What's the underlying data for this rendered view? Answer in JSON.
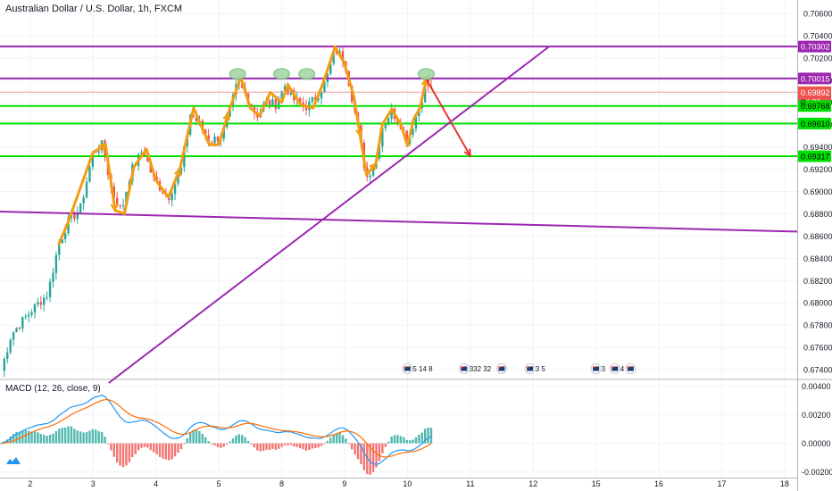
{
  "header": {
    "title": "Australian Dollar / U.S. Dollar, 1h, FXCM"
  },
  "indicator": {
    "label": "MACD (12, 26, close, 9)"
  },
  "chart_data": {
    "type": "candlestick",
    "xlabel": "",
    "ylabel": "",
    "x_tick_labels": [
      "2",
      "3",
      "4",
      "5",
      "8",
      "9",
      "10",
      "11",
      "12",
      "15",
      "16",
      "17",
      "18"
    ],
    "x_tick_positions": [
      2,
      3,
      4,
      5,
      6,
      7,
      8,
      9,
      10,
      11,
      12,
      13,
      14
    ],
    "xlim": [
      1.52,
      14.2
    ],
    "price_axis": {
      "ylim": [
        0.6732,
        0.7072
      ],
      "ticks": [
        "0.70600",
        "0.70400",
        "0.70200",
        "0.70000",
        "0.69800",
        "0.69600",
        "0.69400",
        "0.69200",
        "0.69000",
        "0.68800",
        "0.68600",
        "0.68400",
        "0.68200",
        "0.68000",
        "0.67800",
        "0.67600",
        "0.67400"
      ]
    },
    "macd_axis": {
      "ylim": [
        -0.0024,
        0.0044
      ],
      "ticks": [
        "0.00400",
        "0.00200",
        "0.00000",
        "-0.00200"
      ]
    },
    "price_badges": [
      {
        "label": "0.70302",
        "value": 0.70302,
        "color": "#9c27b0"
      },
      {
        "label": "0.70015",
        "value": 0.70015,
        "color": "#9c27b0"
      },
      {
        "label": "0.69892",
        "value": 0.69892,
        "color": "#ef5350"
      },
      {
        "label": "04:30",
        "value": 0.69805,
        "color": "#ef5350"
      },
      {
        "label": "0.69768",
        "value": 0.69768,
        "color": "#00e000"
      },
      {
        "label": "0.69610",
        "value": 0.6961,
        "color": "#00e000"
      },
      {
        "label": "0.69317",
        "value": 0.69317,
        "color": "#00e000"
      }
    ],
    "current_price_label": "0.",
    "horizontal_lines": [
      {
        "value": 0.70302,
        "color": "#9c27b0"
      },
      {
        "value": 0.70015,
        "color": "#9c27b0"
      },
      {
        "value": 0.69768,
        "color": "#00e000"
      },
      {
        "value": 0.6961,
        "color": "#00e000"
      },
      {
        "value": 0.69317,
        "color": "#00e000"
      }
    ],
    "trend_lines": [
      {
        "from": [
          1.52,
          0.6882
        ],
        "to": [
          14.2,
          0.6864
        ],
        "color": "#9c27b0"
      },
      {
        "from": [
          3.25,
          0.6728
        ],
        "to": [
          10.25,
          0.703
        ],
        "color": "#9c27b0"
      }
    ],
    "forecast_arrow": {
      "from": [
        8.3,
        0.7001
      ],
      "to": [
        9.0,
        0.6932
      ],
      "color": "#e53935"
    },
    "wave_path": [
      [
        2.45,
        0.6852
      ],
      [
        2.6,
        0.6872
      ],
      [
        3.0,
        0.6935
      ],
      [
        3.2,
        0.6942
      ],
      [
        3.35,
        0.6883
      ],
      [
        3.5,
        0.688
      ],
      [
        3.65,
        0.6922
      ],
      [
        3.85,
        0.6938
      ],
      [
        4.0,
        0.691
      ],
      [
        4.2,
        0.6895
      ],
      [
        4.38,
        0.692
      ],
      [
        4.6,
        0.6975
      ],
      [
        4.85,
        0.6942
      ],
      [
        5.0,
        0.6942
      ],
      [
        5.15,
        0.697
      ],
      [
        5.35,
        0.7003
      ],
      [
        5.5,
        0.6975
      ],
      [
        5.65,
        0.6968
      ],
      [
        5.82,
        0.6989
      ],
      [
        6.0,
        0.698
      ],
      [
        6.1,
        0.6996
      ],
      [
        6.3,
        0.6978
      ],
      [
        6.5,
        0.6975
      ],
      [
        6.65,
        0.6996
      ],
      [
        6.85,
        0.703
      ],
      [
        7.0,
        0.7015
      ],
      [
        7.15,
        0.6985
      ],
      [
        7.25,
        0.695
      ],
      [
        7.35,
        0.6915
      ],
      [
        7.5,
        0.6925
      ],
      [
        7.6,
        0.696
      ],
      [
        7.75,
        0.6974
      ],
      [
        7.9,
        0.696
      ],
      [
        8.0,
        0.6941
      ],
      [
        8.1,
        0.6965
      ],
      [
        8.2,
        0.6975
      ],
      [
        8.3,
        0.7001
      ]
    ],
    "wave_color": "#f39c12",
    "top_markers_x": [
      5.3,
      6.0,
      6.4,
      8.3
    ],
    "event_icons": [
      {
        "x": 8.0,
        "label": "5 14 8"
      },
      {
        "x": 8.9,
        "label": "332 32"
      },
      {
        "x": 9.5,
        "label": ""
      },
      {
        "x": 9.95,
        "label": "3 5"
      },
      {
        "x": 11.0,
        "label": "3"
      },
      {
        "x": 11.3,
        "label": "4"
      },
      {
        "x": 11.55,
        "label": ""
      }
    ],
    "candle_colors": {
      "up": "#26a69a",
      "down": "#ef5350",
      "wick": "#5d606b"
    },
    "macd_colors": {
      "macd": "#2196f3",
      "signal": "#ff6d00",
      "hist_pos": "#26a69a",
      "hist_neg": "#ef5350"
    },
    "anchors": [
      [
        1.52,
        0.6735
      ],
      [
        1.7,
        0.6772
      ],
      [
        1.85,
        0.6782
      ],
      [
        2.1,
        0.6798
      ],
      [
        2.28,
        0.6808
      ],
      [
        2.45,
        0.6852
      ],
      [
        2.6,
        0.6872
      ],
      [
        2.8,
        0.6885
      ],
      [
        3.0,
        0.6935
      ],
      [
        3.15,
        0.6942
      ],
      [
        3.3,
        0.69
      ],
      [
        3.45,
        0.6882
      ],
      [
        3.6,
        0.6918
      ],
      [
        3.8,
        0.6938
      ],
      [
        3.95,
        0.6912
      ],
      [
        4.2,
        0.6895
      ],
      [
        4.4,
        0.692
      ],
      [
        4.55,
        0.697
      ],
      [
        4.7,
        0.696
      ],
      [
        4.85,
        0.6945
      ],
      [
        5.05,
        0.695
      ],
      [
        5.15,
        0.6968
      ],
      [
        5.3,
        0.6998
      ],
      [
        5.45,
        0.6985
      ],
      [
        5.6,
        0.6968
      ],
      [
        5.75,
        0.698
      ],
      [
        5.9,
        0.6978
      ],
      [
        6.05,
        0.6995
      ],
      [
        6.2,
        0.6982
      ],
      [
        6.4,
        0.6976
      ],
      [
        6.55,
        0.6985
      ],
      [
        6.7,
        0.6998
      ],
      [
        6.85,
        0.7028
      ],
      [
        7.0,
        0.7018
      ],
      [
        7.1,
        0.699
      ],
      [
        7.22,
        0.6955
      ],
      [
        7.35,
        0.6912
      ],
      [
        7.5,
        0.6928
      ],
      [
        7.6,
        0.6958
      ],
      [
        7.75,
        0.6972
      ],
      [
        7.9,
        0.696
      ],
      [
        8.0,
        0.6945
      ],
      [
        8.1,
        0.6962
      ],
      [
        8.2,
        0.6978
      ],
      [
        8.3,
        0.6998
      ],
      [
        8.4,
        0.6989
      ]
    ]
  }
}
